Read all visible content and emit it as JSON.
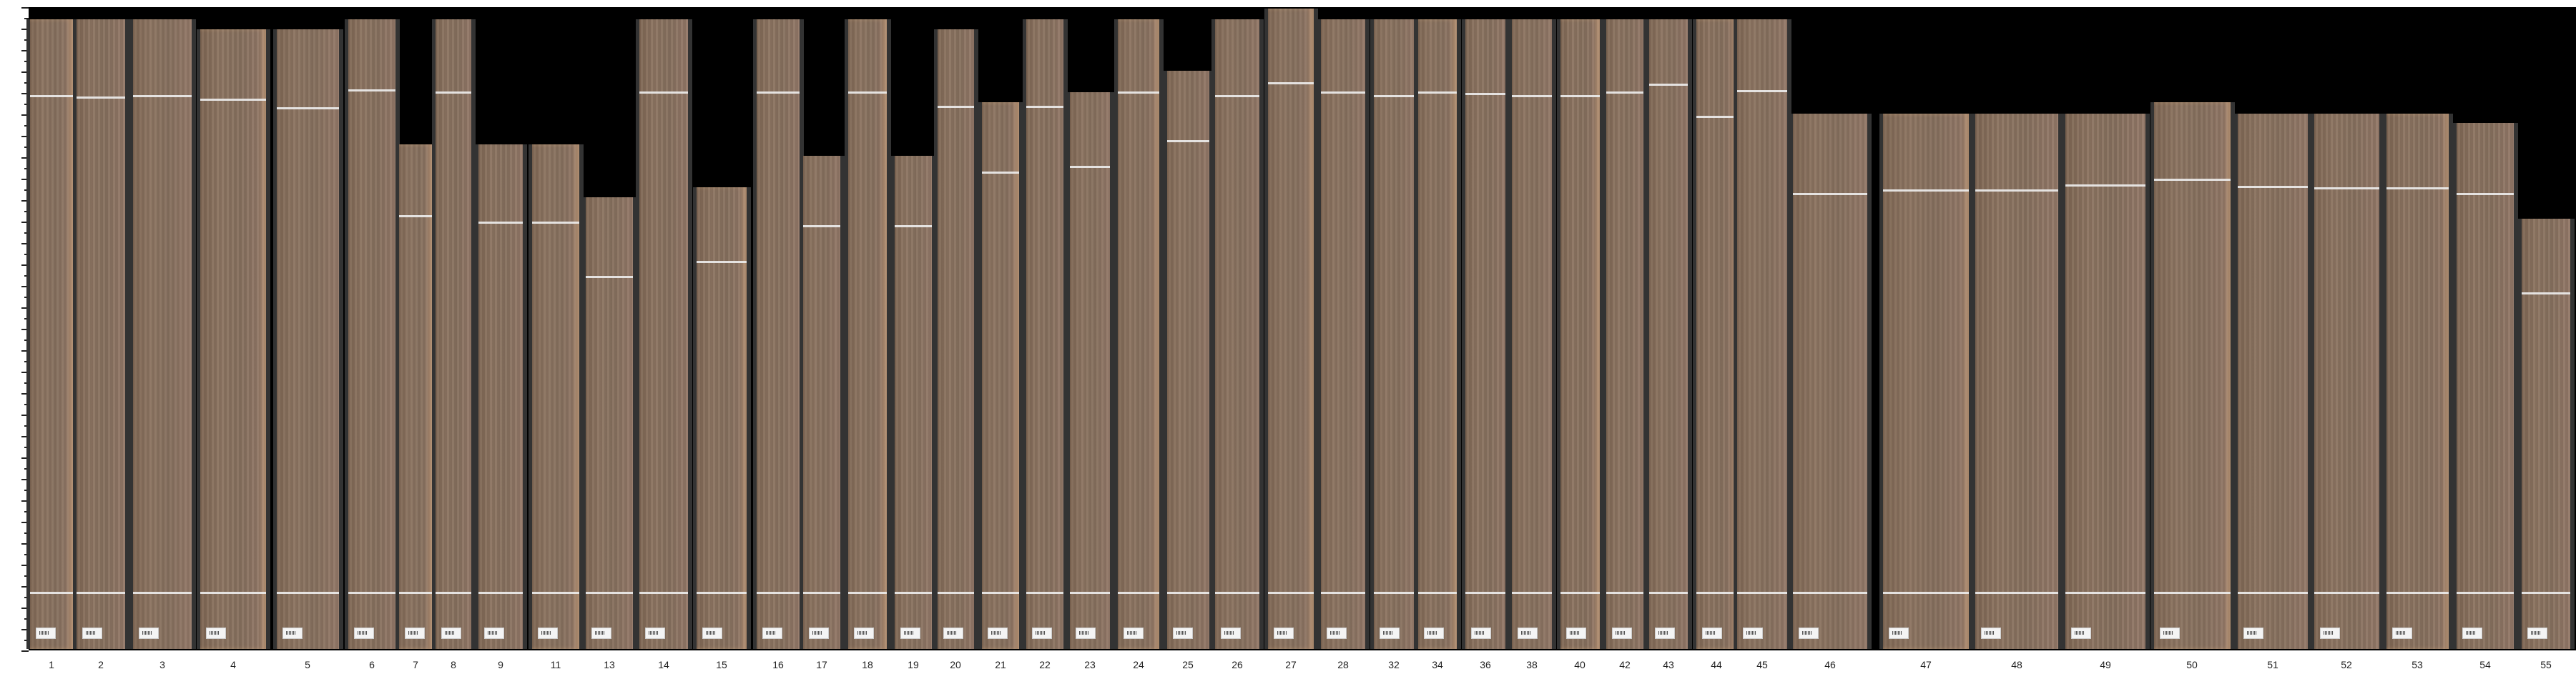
{
  "panel_labels": [
    "1",
    "2",
    "3",
    "4",
    "5",
    "6",
    "7",
    "8",
    "9",
    "11",
    "13",
    "14",
    "15",
    "16",
    "17",
    "18",
    "19",
    "20",
    "21",
    "22",
    "23",
    "24",
    "25",
    "26",
    "27",
    "28",
    "32",
    "34",
    "36",
    "38",
    "40",
    "42",
    "43",
    "44",
    "45",
    "46",
    "47",
    "48",
    "49",
    "50",
    "51",
    "52",
    "53",
    "54",
    "55"
  ],
  "colors": {
    "background": "#000000",
    "backing": "#333333",
    "wood": "#8a7361",
    "label_text": "#222222"
  }
}
